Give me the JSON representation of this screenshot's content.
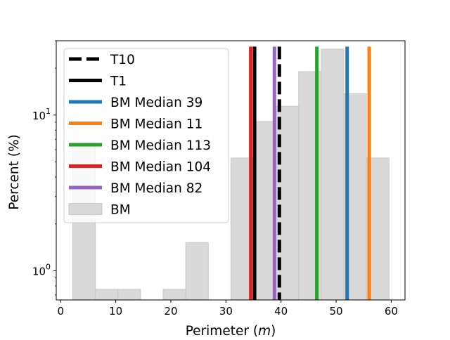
{
  "chart_data": {
    "type": "bar",
    "xlabel_prefix": "Perimeter (",
    "xlabel_var": "m",
    "xlabel_suffix": ")",
    "ylabel": "Percent (%)",
    "xlim": [
      -0.8,
      62.5
    ],
    "ylim": [
      0.65,
      30
    ],
    "yscale": "log",
    "x_ticks": [
      0,
      10,
      20,
      30,
      40,
      50,
      60
    ],
    "y_ticks": [
      {
        "value": 1,
        "base": "10",
        "exp": "0"
      },
      {
        "value": 10,
        "base": "10",
        "exp": "1"
      }
    ],
    "histogram": {
      "name": "BM",
      "color": "#d9d9d9",
      "edge_color": "#c8c8c8",
      "bins": [
        {
          "x0": 2.2,
          "x1": 6.3,
          "value": 6.6
        },
        {
          "x0": 6.3,
          "x1": 10.4,
          "value": 0.76
        },
        {
          "x0": 10.4,
          "x1": 14.5,
          "value": 0.76
        },
        {
          "x0": 18.6,
          "x1": 22.7,
          "value": 0.76
        },
        {
          "x0": 22.7,
          "x1": 26.8,
          "value": 1.52
        },
        {
          "x0": 30.9,
          "x1": 35.0,
          "value": 5.3
        },
        {
          "x0": 35.0,
          "x1": 39.1,
          "value": 9.1
        },
        {
          "x0": 39.1,
          "x1": 43.2,
          "value": 11.4
        },
        {
          "x0": 43.2,
          "x1": 47.3,
          "value": 19.0
        },
        {
          "x0": 47.3,
          "x1": 51.4,
          "value": 26.5
        },
        {
          "x0": 51.4,
          "x1": 55.5,
          "value": 13.7
        },
        {
          "x0": 55.5,
          "x1": 59.6,
          "value": 5.3
        }
      ]
    },
    "vlines": [
      {
        "name": "T10",
        "x": 39.7,
        "color": "#000000",
        "dashed": true
      },
      {
        "name": "T1",
        "x": 35.2,
        "color": "#000000",
        "dashed": false
      },
      {
        "name": "BM Median 39",
        "x": 52.0,
        "color": "#1f77b4",
        "dashed": false
      },
      {
        "name": "BM Median 11",
        "x": 56.0,
        "color": "#ff7f0e",
        "dashed": false
      },
      {
        "name": "BM Median 113",
        "x": 46.5,
        "color": "#2ca02c",
        "dashed": false
      },
      {
        "name": "BM Median 104",
        "x": 34.5,
        "color": "#d62728",
        "dashed": false
      },
      {
        "name": "BM Median 82",
        "x": 38.8,
        "color": "#9467bd",
        "dashed": false
      }
    ],
    "line_top": 27.5,
    "legend_position": "upper left"
  }
}
